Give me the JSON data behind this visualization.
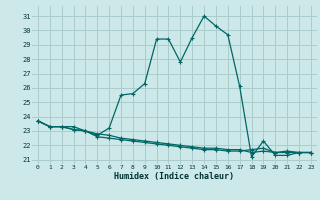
{
  "xlabel": "Humidex (Indice chaleur)",
  "background_color": "#cce8e8",
  "grid_color": "#aacccc",
  "line_color": "#006666",
  "xlim": [
    -0.5,
    23.5
  ],
  "ylim": [
    20.7,
    31.7
  ],
  "yticks": [
    21,
    22,
    23,
    24,
    25,
    26,
    27,
    28,
    29,
    30,
    31
  ],
  "xticks": [
    0,
    1,
    2,
    3,
    4,
    5,
    6,
    7,
    8,
    9,
    10,
    11,
    12,
    13,
    14,
    15,
    16,
    17,
    18,
    19,
    20,
    21,
    22,
    23
  ],
  "series": [
    {
      "x": [
        0,
        1,
        2,
        3,
        4,
        5,
        6,
        7,
        8,
        9,
        10,
        11,
        12,
        13,
        14,
        15,
        16,
        17,
        18,
        19,
        20,
        21,
        22,
        23
      ],
      "y": [
        23.7,
        23.3,
        23.3,
        23.3,
        23.0,
        22.7,
        23.2,
        25.5,
        25.6,
        26.3,
        29.4,
        29.4,
        27.8,
        29.5,
        31.0,
        30.3,
        29.7,
        26.1,
        21.2,
        22.3,
        21.3,
        21.3,
        21.5,
        21.5
      ]
    },
    {
      "x": [
        0,
        1,
        2,
        3,
        4,
        5,
        6,
        7,
        8,
        9,
        10,
        11,
        12,
        13,
        14,
        15,
        16,
        17,
        18,
        19,
        20,
        21,
        22,
        23
      ],
      "y": [
        23.7,
        23.3,
        23.3,
        23.1,
        23.0,
        22.8,
        22.7,
        22.5,
        22.4,
        22.3,
        22.2,
        22.1,
        22.0,
        21.9,
        21.8,
        21.8,
        21.7,
        21.7,
        21.5,
        21.6,
        21.5,
        21.5,
        21.5,
        21.5
      ]
    },
    {
      "x": [
        0,
        1,
        2,
        3,
        4,
        5,
        6,
        7,
        8,
        9,
        10,
        11,
        12,
        13,
        14,
        15,
        16,
        17,
        18,
        19,
        20,
        21,
        22,
        23
      ],
      "y": [
        23.7,
        23.3,
        23.3,
        23.1,
        23.0,
        22.6,
        22.5,
        22.4,
        22.3,
        22.2,
        22.1,
        22.0,
        21.9,
        21.8,
        21.7,
        21.7,
        21.6,
        21.6,
        21.7,
        21.8,
        21.5,
        21.6,
        21.5,
        21.5
      ]
    }
  ]
}
